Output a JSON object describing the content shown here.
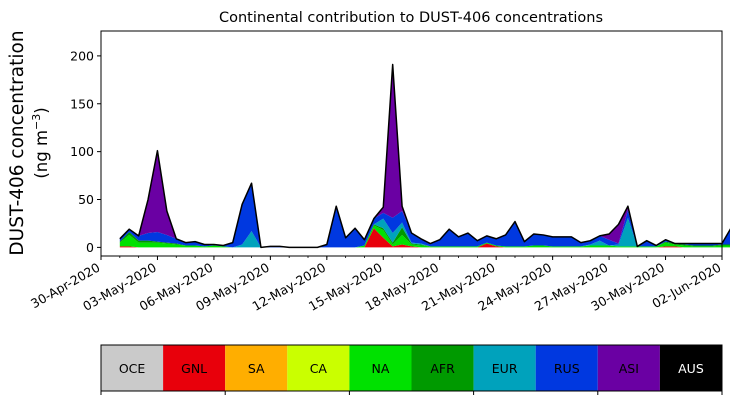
{
  "chart_data": {
    "type": "area",
    "stacked": true,
    "title": "Continental contribution to DUST-406 concentrations",
    "ylabel_line1": "DUST-406 concentration",
    "ylabel_line2_prefix": "(ng m",
    "ylabel_line2_exp": "−3",
    "ylabel_line2_suffix": ")",
    "xlabel": "",
    "x_start": "2020-05-01",
    "x_step_days": 0.5,
    "xlim": [
      "2020-04-30",
      "2020-06-02"
    ],
    "ylim": [
      -9,
      226
    ],
    "yticks": [
      0,
      50,
      100,
      150,
      200
    ],
    "xtick_labels": [
      "30-Apr-2020",
      "03-May-2020",
      "06-May-2020",
      "09-May-2020",
      "12-May-2020",
      "15-May-2020",
      "18-May-2020",
      "21-May-2020",
      "24-May-2020",
      "27-May-2020",
      "30-May-2020",
      "02-Jun-2020"
    ],
    "xtick_dates": [
      "2020-04-30",
      "2020-05-03",
      "2020-05-06",
      "2020-05-09",
      "2020-05-12",
      "2020-05-15",
      "2020-05-18",
      "2020-05-21",
      "2020-05-24",
      "2020-05-27",
      "2020-05-30",
      "2020-06-02"
    ],
    "series": [
      {
        "name": "GNL",
        "color": "#e8000b",
        "values": [
          1,
          1,
          0,
          0,
          0,
          0,
          0,
          0,
          0,
          0,
          0,
          0,
          0,
          0,
          0,
          0,
          0,
          0,
          0,
          0,
          0,
          0,
          0,
          0,
          0,
          0,
          0,
          20,
          10,
          1,
          3,
          1,
          0,
          0,
          0,
          0,
          0,
          0,
          0,
          4,
          1,
          0,
          0,
          0,
          0,
          0,
          0,
          0,
          0,
          0,
          0,
          0,
          0,
          0,
          0,
          0,
          0,
          0,
          1,
          1,
          0,
          0,
          0,
          0,
          0,
          0,
          0,
          0
        ]
      },
      {
        "name": "NA",
        "color": "#00e100",
        "values": [
          4,
          12,
          5,
          5,
          5,
          4,
          3,
          2,
          2,
          1,
          2,
          1,
          0,
          0,
          0,
          0,
          0,
          0,
          0,
          0,
          0,
          0,
          0,
          0,
          0,
          0,
          2,
          3,
          8,
          2,
          10,
          2,
          2,
          1,
          1,
          1,
          1,
          1,
          1,
          1,
          1,
          1,
          1,
          1,
          2,
          2,
          1,
          1,
          1,
          1,
          2,
          2,
          2,
          1,
          1,
          1,
          1,
          1,
          4,
          2,
          2,
          1,
          1,
          1,
          2,
          2,
          4,
          16
        ]
      },
      {
        "name": "AFR",
        "color": "#009a00",
        "values": [
          1,
          3,
          2,
          2,
          1,
          1,
          1,
          0,
          0,
          0,
          0,
          0,
          0,
          0,
          0,
          0,
          0,
          0,
          0,
          0,
          0,
          0,
          0,
          0,
          0,
          0,
          0,
          1,
          2,
          2,
          8,
          1,
          1,
          0,
          0,
          0,
          0,
          0,
          0,
          0,
          0,
          0,
          0,
          0,
          0,
          0,
          0,
          0,
          0,
          0,
          0,
          0,
          0,
          0,
          0,
          0,
          0,
          0,
          1,
          1,
          1,
          1,
          1,
          1,
          1,
          1,
          1,
          4
        ]
      },
      {
        "name": "EUR",
        "color": "#00a2bc",
        "values": [
          0,
          0,
          0,
          0,
          0,
          0,
          0,
          0,
          0,
          0,
          0,
          0,
          0,
          3,
          17,
          0,
          0,
          0,
          0,
          0,
          0,
          0,
          0,
          0,
          0,
          0,
          0,
          0,
          10,
          10,
          5,
          1,
          1,
          0,
          0,
          0,
          0,
          0,
          0,
          0,
          0,
          0,
          0,
          0,
          0,
          0,
          0,
          0,
          0,
          0,
          1,
          5,
          0,
          2,
          30,
          0,
          0,
          0,
          0,
          0,
          0,
          0,
          0,
          0,
          0,
          0,
          0,
          0
        ]
      },
      {
        "name": "RUS",
        "color": "#0038e0",
        "values": [
          3,
          3,
          5,
          8,
          10,
          8,
          5,
          3,
          4,
          2,
          1,
          1,
          5,
          42,
          50,
          0,
          1,
          1,
          0,
          0,
          0,
          0,
          3,
          43,
          10,
          20,
          6,
          6,
          6,
          16,
          12,
          10,
          5,
          3,
          7,
          18,
          10,
          14,
          6,
          7,
          7,
          12,
          26,
          5,
          12,
          11,
          10,
          10,
          10,
          4,
          4,
          5,
          6,
          1,
          8,
          0,
          6,
          1,
          2,
          0,
          1,
          2,
          2,
          2,
          1,
          18,
          10,
          12
        ]
      },
      {
        "name": "ASI",
        "color": "#6a00a3",
        "values": [
          0,
          0,
          0,
          35,
          85,
          25,
          0,
          0,
          0,
          0,
          0,
          0,
          0,
          0,
          0,
          0,
          0,
          0,
          0,
          0,
          0,
          0,
          0,
          0,
          0,
          0,
          0,
          0,
          6,
          160,
          5,
          0,
          0,
          0,
          0,
          0,
          0,
          0,
          0,
          0,
          0,
          0,
          0,
          0,
          0,
          0,
          0,
          0,
          0,
          0,
          0,
          0,
          6,
          20,
          4,
          0,
          0,
          0,
          0,
          0,
          0,
          0,
          0,
          0,
          0,
          0,
          0,
          0
        ]
      }
    ],
    "colorbar": {
      "categories": [
        "OCE",
        "GNL",
        "SA",
        "CA",
        "NA",
        "AFR",
        "EUR",
        "RUS",
        "ASI",
        "AUS"
      ],
      "colors": [
        "#cacaca",
        "#e8000b",
        "#ffae00",
        "#caff00",
        "#00e100",
        "#009a00",
        "#00a2bc",
        "#0038e0",
        "#6a00a3",
        "#000000"
      ],
      "text_colors": [
        "#000000",
        "#000000",
        "#000000",
        "#000000",
        "#000000",
        "#000000",
        "#000000",
        "#000000",
        "#000000",
        "#ffffff"
      ]
    }
  }
}
